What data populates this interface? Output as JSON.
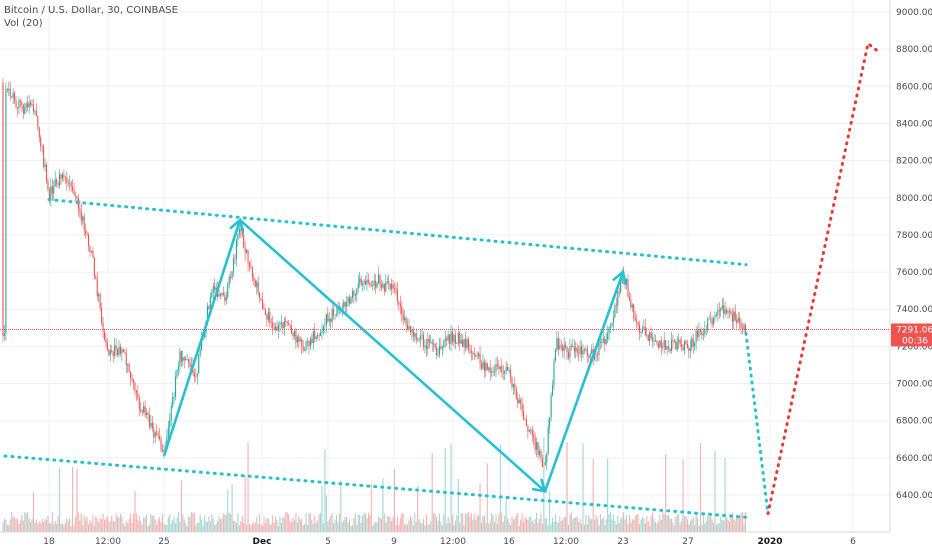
{
  "header": {
    "symbol_line": "Bitcoin / U.S. Dollar, 30, COINBASE",
    "indicator_line": "Vol (20)"
  },
  "price_badge": {
    "price": "7291.06",
    "countdown": "00:36"
  },
  "colors": {
    "up": "#26a69a",
    "down": "#ef5350",
    "up_vol": "#a5d6d2",
    "down_vol": "#f3b2b0",
    "trendline": "#26c0d3",
    "projection": "#e53935",
    "grid": "#eef0f3",
    "price_line": "#ef5350"
  },
  "chart_data": {
    "type": "candlestick",
    "x_axis": {
      "tick_labels": [
        "18",
        "12:00",
        "25",
        "Dec",
        "5",
        "9",
        "12:00",
        "16",
        "12:00",
        "23",
        "27",
        "2020",
        "6"
      ]
    },
    "y_axis": {
      "ylim": [
        6280,
        9050
      ],
      "ticks": [
        9000,
        8800,
        8600,
        8400,
        8200,
        8000,
        7800,
        7600,
        7400,
        7200,
        7000,
        6800,
        6600,
        6400
      ],
      "tick_labels": [
        "9000.00",
        "8800.00",
        "8600.00",
        "8400.00",
        "8200.00",
        "8000.00",
        "7800.00",
        "7600.00",
        "7400.00",
        "7200.00",
        "7000.00",
        "6800.00",
        "6600.00",
        "6400.00"
      ]
    },
    "last_price": 7291.06,
    "path_keypoints": [
      {
        "date": "Nov 15",
        "price": 8620
      },
      {
        "date": "Nov 16",
        "price": 8480
      },
      {
        "date": "Nov 17",
        "price": 8500
      },
      {
        "date": "Nov 18",
        "price": 8020
      },
      {
        "date": "Nov 19",
        "price": 8120
      },
      {
        "date": "Nov 20",
        "price": 7980
      },
      {
        "date": "Nov 21",
        "price": 7650
      },
      {
        "date": "Nov 22",
        "price": 7150
      },
      {
        "date": "Nov 23",
        "price": 7200
      },
      {
        "date": "Nov 24",
        "price": 6920
      },
      {
        "date": "Nov 25",
        "price": 6640
      },
      {
        "date": "Nov 26",
        "price": 7150
      },
      {
        "date": "Nov 27",
        "price": 7050
      },
      {
        "date": "Nov 28",
        "price": 7520
      },
      {
        "date": "Nov 29",
        "price": 7470
      },
      {
        "date": "Nov 30",
        "price": 7830
      },
      {
        "date": "Dec 01",
        "price": 7520
      },
      {
        "date": "Dec 02",
        "price": 7300
      },
      {
        "date": "Dec 03",
        "price": 7330
      },
      {
        "date": "Dec 04",
        "price": 7180
      },
      {
        "date": "Dec 05",
        "price": 7350
      },
      {
        "date": "Dec 06",
        "price": 7420
      },
      {
        "date": "Dec 07",
        "price": 7550
      },
      {
        "date": "Dec 08",
        "price": 7550
      },
      {
        "date": "Dec 09",
        "price": 7500
      },
      {
        "date": "Dec 10",
        "price": 7300
      },
      {
        "date": "Dec 11",
        "price": 7230
      },
      {
        "date": "Dec 12",
        "price": 7180
      },
      {
        "date": "Dec 13",
        "price": 7250
      },
      {
        "date": "Dec 14",
        "price": 7220
      },
      {
        "date": "Dec 15",
        "price": 7100
      },
      {
        "date": "Dec 16",
        "price": 7050
      },
      {
        "date": "Dec 17",
        "price": 6800
      },
      {
        "date": "Dec 18",
        "price": 6550
      },
      {
        "date": "Dec 18.5",
        "price": 7230
      },
      {
        "date": "Dec 19",
        "price": 7170
      },
      {
        "date": "Dec 20",
        "price": 7180
      },
      {
        "date": "Dec 21",
        "price": 7160
      },
      {
        "date": "Dec 22",
        "price": 7250
      },
      {
        "date": "Dec 23",
        "price": 7600
      },
      {
        "date": "Dec 24",
        "price": 7300
      },
      {
        "date": "Dec 25",
        "price": 7230
      },
      {
        "date": "Dec 26",
        "price": 7210
      },
      {
        "date": "Dec 27",
        "price": 7200
      },
      {
        "date": "Dec 28",
        "price": 7310
      },
      {
        "date": "Dec 29",
        "price": 7410
      },
      {
        "date": "Dec 30",
        "price": 7291
      }
    ],
    "drawings": {
      "upper_trendline": [
        {
          "date": "Nov 18",
          "price": 7990
        },
        {
          "date": "Dec 30",
          "price": 7640
        }
      ],
      "lower_trendline": [
        {
          "date": "Nov 15",
          "price": 6610
        },
        {
          "date": "Dec 30",
          "price": 6280
        }
      ],
      "arrow_path": [
        {
          "date": "Nov 25",
          "price": 6610
        },
        {
          "date": "Nov 30",
          "price": 7880
        },
        {
          "date": "Dec 18",
          "price": 6420
        },
        {
          "date": "Dec 23",
          "price": 7600
        }
      ],
      "forecast_down": [
        {
          "date": "Dec 30",
          "price": 7270
        },
        {
          "date": "Jan 01",
          "price": 6300
        }
      ],
      "forecast_up": [
        {
          "date": "Jan 01",
          "price": 6300
        },
        {
          "date": "Jan 06",
          "price": 8830
        },
        {
          "date": "Jan 07",
          "price": 8780
        }
      ]
    }
  }
}
